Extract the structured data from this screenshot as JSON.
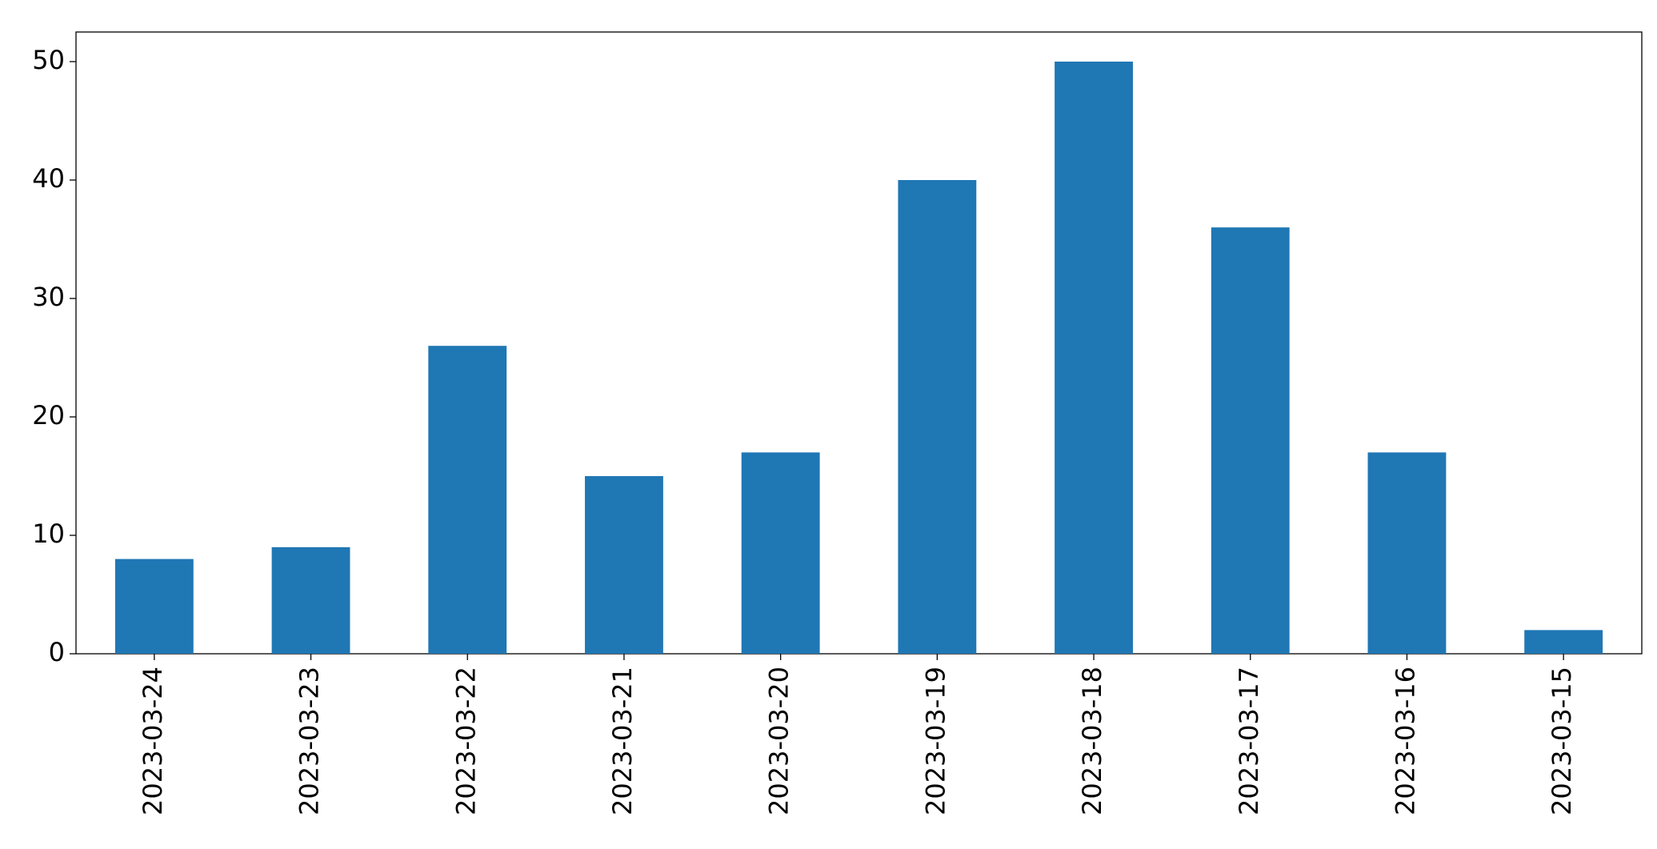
{
  "chart_data": {
    "type": "bar",
    "categories": [
      "2023-03-24",
      "2023-03-23",
      "2023-03-22",
      "2023-03-21",
      "2023-03-20",
      "2023-03-19",
      "2023-03-18",
      "2023-03-17",
      "2023-03-16",
      "2023-03-15"
    ],
    "values": [
      8,
      9,
      26,
      15,
      17,
      40,
      50,
      36,
      17,
      2
    ],
    "color": "#1f77b4",
    "ylim": [
      0,
      52.5
    ],
    "yticks": [
      0,
      10,
      20,
      30,
      40,
      50
    ],
    "grid": false
  }
}
